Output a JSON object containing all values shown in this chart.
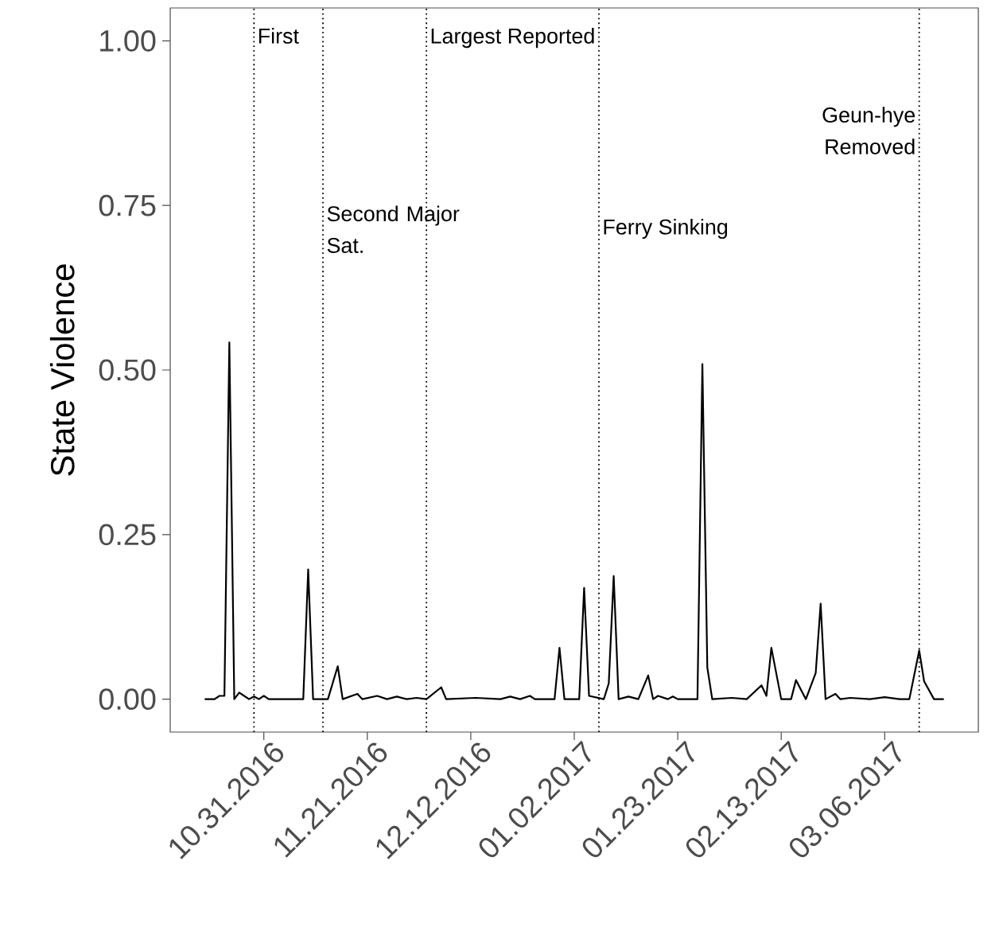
{
  "chart_data": {
    "type": "line",
    "ylabel": "State Violence",
    "x": [
      "2016-10-19",
      "2016-10-21",
      "2016-10-22",
      "2016-10-23",
      "2016-10-24",
      "2016-10-25",
      "2016-10-26",
      "2016-10-27",
      "2016-10-28",
      "2016-10-29",
      "2016-10-30",
      "2016-10-31",
      "2016-11-01",
      "2016-11-08",
      "2016-11-09",
      "2016-11-10",
      "2016-11-13",
      "2016-11-15",
      "2016-11-16",
      "2016-11-19",
      "2016-11-20",
      "2016-11-23",
      "2016-11-25",
      "2016-11-27",
      "2016-11-29",
      "2016-12-01",
      "2016-12-03",
      "2016-12-06",
      "2016-12-07",
      "2016-12-13",
      "2016-12-18",
      "2016-12-20",
      "2016-12-22",
      "2016-12-24",
      "2016-12-25",
      "2016-12-29",
      "2016-12-30",
      "2016-12-31",
      "2017-01-03",
      "2017-01-04",
      "2017-01-05",
      "2017-01-08",
      "2017-01-09",
      "2017-01-10",
      "2017-01-11",
      "2017-01-13",
      "2017-01-15",
      "2017-01-17",
      "2017-01-18",
      "2017-01-19",
      "2017-01-21",
      "2017-01-22",
      "2017-01-23",
      "2017-01-27",
      "2017-01-28",
      "2017-01-29",
      "2017-01-30",
      "2017-02-03",
      "2017-02-06",
      "2017-02-09",
      "2017-02-10",
      "2017-02-11",
      "2017-02-13",
      "2017-02-15",
      "2017-02-16",
      "2017-02-18",
      "2017-02-20",
      "2017-02-21",
      "2017-02-22",
      "2017-02-24",
      "2017-02-25",
      "2017-02-27",
      "2017-03-03",
      "2017-03-06",
      "2017-03-09",
      "2017-03-11",
      "2017-03-13",
      "2017-03-14",
      "2017-03-16",
      "2017-03-18"
    ],
    "values": [
      0,
      0,
      0.005,
      0.005,
      0.542,
      0,
      0.01,
      0.005,
      0,
      0.004,
      0,
      0.005,
      0,
      0,
      0.197,
      0,
      0,
      0.05,
      0,
      0.008,
      0,
      0.005,
      0,
      0.004,
      0,
      0.002,
      0,
      0.018,
      0,
      0.002,
      0,
      0.004,
      0,
      0.005,
      0,
      0,
      0.078,
      0,
      0,
      0.169,
      0.005,
      0,
      0.024,
      0.187,
      0,
      0.004,
      0,
      0.036,
      0,
      0.005,
      0,
      0.004,
      0,
      0,
      0.509,
      0.048,
      0,
      0.002,
      0,
      0.021,
      0.005,
      0.078,
      0,
      0,
      0.029,
      0,
      0.04,
      0.145,
      0,
      0.008,
      0,
      0.002,
      0,
      0.003,
      0,
      0,
      0.074,
      0.027,
      0,
      0
    ],
    "color": "#000000",
    "line_style": "solid",
    "marker": "none",
    "grid": false,
    "xlim": [
      "2016-10-12",
      "2017-03-25"
    ],
    "xticks": [
      {
        "value": "2016-10-31",
        "label": "10.31.2016"
      },
      {
        "value": "2016-11-21",
        "label": "11.21.2016"
      },
      {
        "value": "2016-12-12",
        "label": "12.12.2016"
      },
      {
        "value": "2017-01-02",
        "label": "01.02.2017"
      },
      {
        "value": "2017-01-23",
        "label": "01.23.2017"
      },
      {
        "value": "2017-02-13",
        "label": "02.13.2017"
      },
      {
        "value": "2017-03-06",
        "label": "03.06.2017"
      }
    ],
    "ylim": [
      -0.05,
      1.05
    ],
    "yticks": [
      {
        "value": 0,
        "label": "0.00"
      },
      {
        "value": 0.25,
        "label": "0.25"
      },
      {
        "value": 0.5,
        "label": "0.50"
      },
      {
        "value": 0.75,
        "label": "0.75"
      },
      {
        "value": 1,
        "label": "1.00"
      }
    ],
    "ref_lines": [
      {
        "axis": "x",
        "value": "2016-10-29",
        "label": "First",
        "color": "#000000",
        "line_style": "dotted"
      },
      {
        "axis": "x",
        "value": "2016-11-12",
        "label": "Second Major Sat.",
        "color": "#000000",
        "line_style": "dotted"
      },
      {
        "axis": "x",
        "value": "2016-12-03",
        "label": "Largest Reported",
        "color": "#000000",
        "line_style": "dotted"
      },
      {
        "axis": "x",
        "value": "2017-01-07",
        "label": "Ferry Sinking",
        "color": "#000000",
        "line_style": "dotted"
      },
      {
        "axis": "x",
        "value": "2017-03-13",
        "label": "Geun-hye Removed",
        "color": "#000000",
        "line_style": "dotted"
      }
    ]
  }
}
